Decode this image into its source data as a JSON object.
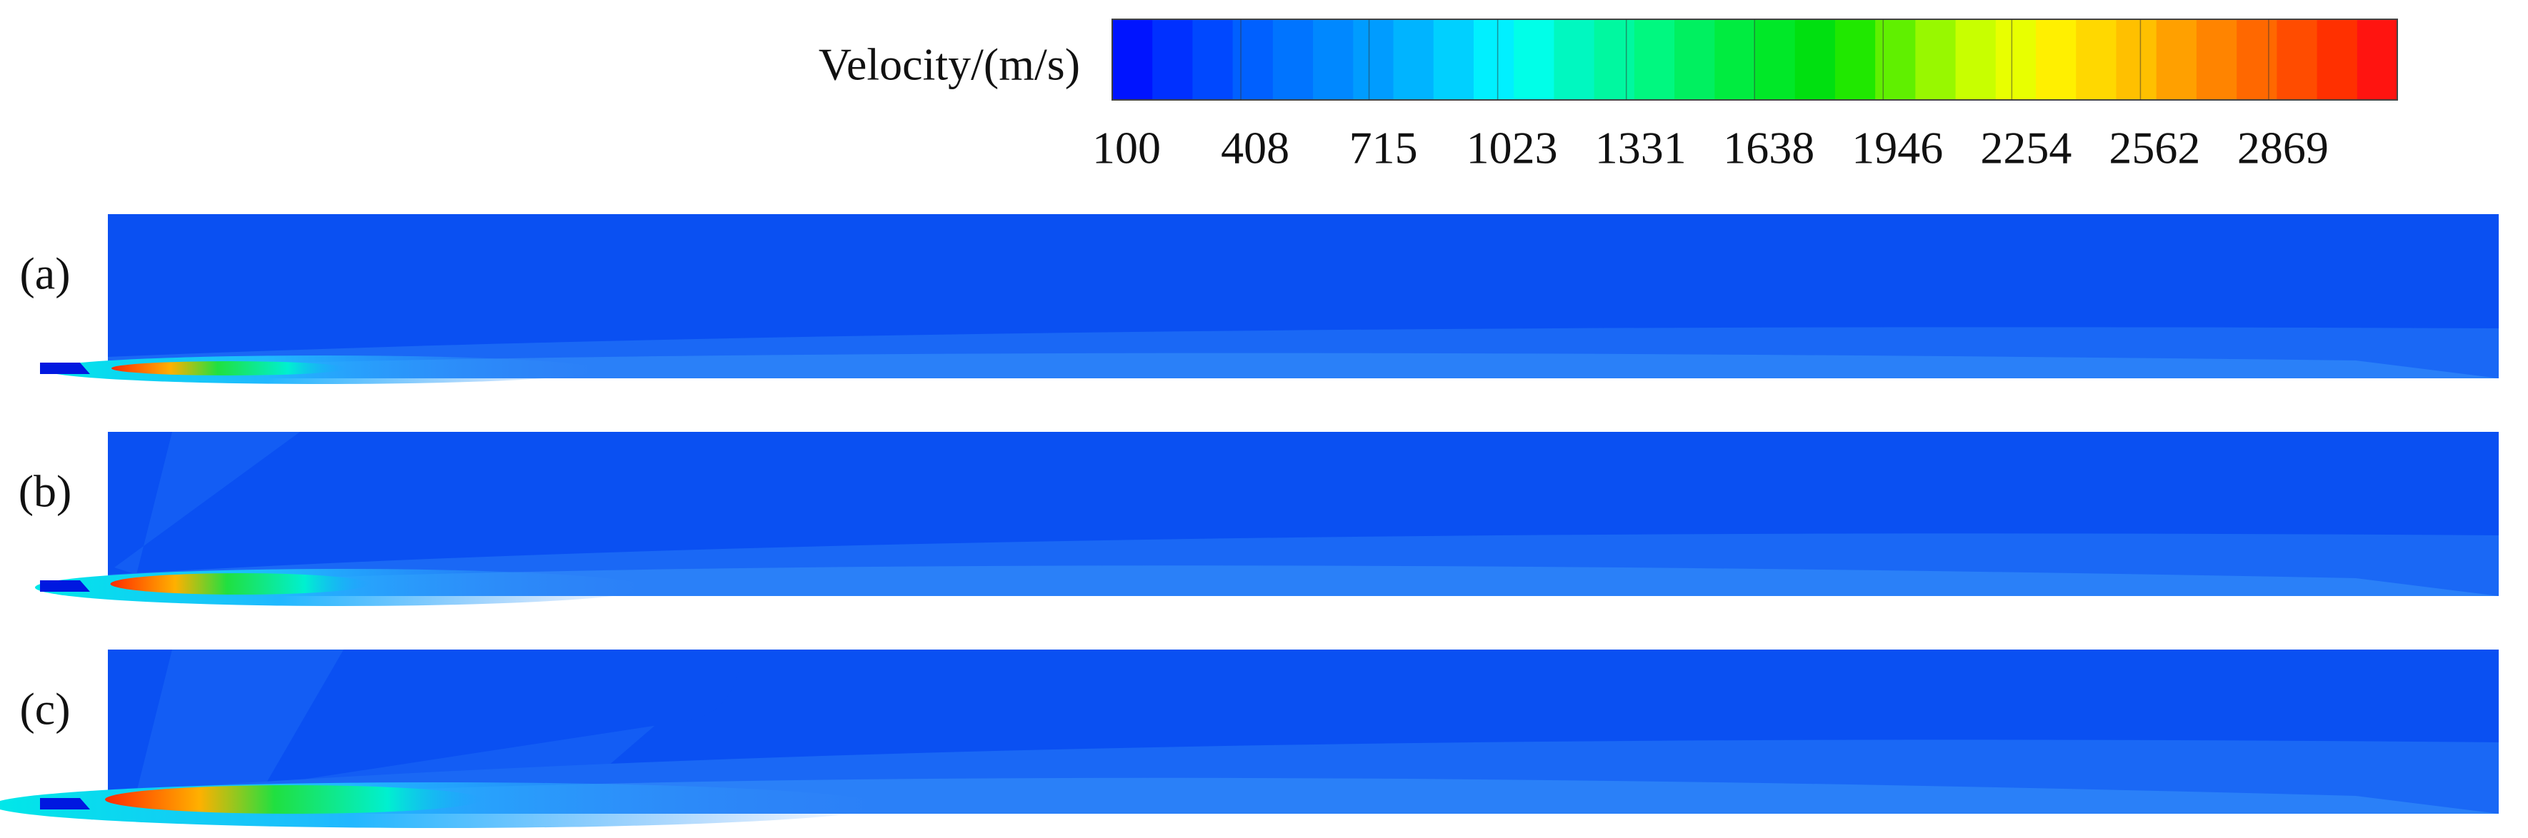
{
  "colorbar": {
    "label": "Velocity/(m/s)",
    "ticks": [
      100,
      408,
      715,
      1023,
      1331,
      1638,
      1946,
      2254,
      2562,
      2869
    ],
    "range": [
      100,
      3177
    ]
  },
  "panels": [
    {
      "label": "(a)"
    },
    {
      "label": "(b)"
    },
    {
      "label": "(c)"
    }
  ]
}
